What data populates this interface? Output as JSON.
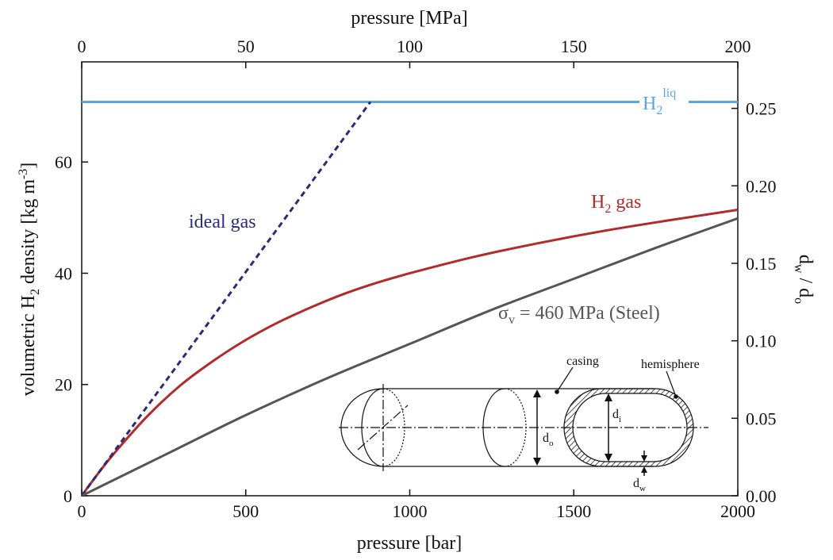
{
  "colors": {
    "h2_liq": "#5aa5e0",
    "h2_gas": "#b22a2a",
    "ideal_gas": "#2a2a78",
    "steel": "#555555",
    "axis": "#111111"
  },
  "chart_data": {
    "type": "line",
    "xlabel_bottom": "pressure [bar]",
    "xlabel_top": "pressure [MPa]",
    "ylabel_left": "volumetric H2 density [kg m-3]",
    "ylabel_right": "dw / do",
    "xlim": [
      0,
      2000
    ],
    "xlim_top": [
      0,
      200
    ],
    "ylim_left": [
      0,
      78
    ],
    "ylim_right": [
      0,
      0.28
    ],
    "x_ticks": [
      "0",
      "500",
      "1000",
      "1500",
      "2000"
    ],
    "x_ticks_top": [
      "0",
      "50",
      "100",
      "150",
      "200"
    ],
    "y_ticks_left": [
      "0",
      "20",
      "40",
      "60"
    ],
    "y_ticks_right": [
      "0.00",
      "0.05",
      "0.10",
      "0.15",
      "0.20",
      "0.25"
    ],
    "series": [
      {
        "name": "H2 liq",
        "axis": "left",
        "style": "solid",
        "x": [
          0,
          2000
        ],
        "y": [
          70.8,
          70.8
        ]
      },
      {
        "name": "H2 gas",
        "axis": "left",
        "style": "solid",
        "x": [
          0,
          50,
          100,
          200,
          300,
          400,
          500,
          600,
          700,
          800,
          900,
          1000,
          1200,
          1400,
          1600,
          1800,
          2000
        ],
        "y": [
          0,
          4.0,
          7.7,
          14.3,
          19.8,
          24.2,
          28.0,
          31.2,
          33.9,
          36.3,
          38.3,
          40.0,
          43.0,
          45.5,
          47.7,
          49.6,
          51.4
        ]
      },
      {
        "name": "ideal gas",
        "axis": "left",
        "style": "dashed",
        "x": [
          0,
          880
        ],
        "y": [
          0,
          70.8
        ]
      },
      {
        "name": "σv = 460 MPa (Steel)",
        "axis": "right",
        "style": "solid",
        "x": [
          0,
          250,
          500,
          750,
          1000,
          1250,
          1500,
          1750,
          2000
        ],
        "y": [
          0,
          0.026,
          0.052,
          0.076,
          0.098,
          0.12,
          0.14,
          0.16,
          0.179
        ]
      }
    ],
    "annotations": {
      "h2_liq": {
        "main": "H",
        "sub": "2",
        "sup": "liq"
      },
      "h2_gas": {
        "main": "H",
        "sub": "2",
        "rest": " gas"
      },
      "ideal_gas": "ideal gas",
      "steel": {
        "sigma": "σ",
        "sub": "v",
        "rest": " = 460 MPa (Steel)"
      }
    },
    "inset": {
      "casing": "casing",
      "hemisphere": "hemisphere",
      "d_i": {
        "main": "d",
        "sub": "i"
      },
      "d_o": {
        "main": "d",
        "sub": "o"
      },
      "d_w": {
        "main": "d",
        "sub": "w"
      }
    },
    "grid": false,
    "legend": "none"
  }
}
